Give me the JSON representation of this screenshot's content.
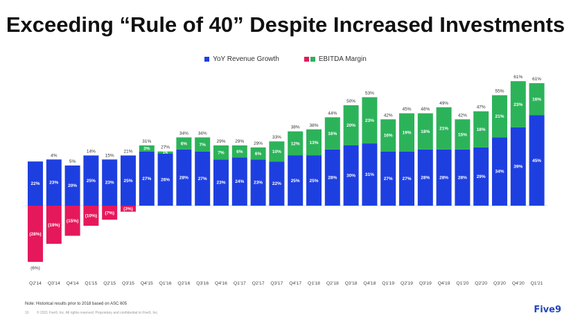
{
  "title": "Exceeding “Rule of 40” Despite Increased Investments",
  "colors": {
    "revenue": "#1e3fe0",
    "ebitda_positive": "#2cb35a",
    "ebitda_negative": "#e5185c"
  },
  "chart_data": {
    "type": "bar",
    "stacked": true,
    "categories": [
      "Q2'14",
      "Q3'14",
      "Q4'14",
      "Q1'15",
      "Q2'15",
      "Q3'15",
      "Q4'15",
      "Q1'16",
      "Q2'16",
      "Q3'16",
      "Q4'16",
      "Q1'17",
      "Q2'17",
      "Q3'17",
      "Q4'17",
      "Q1'18",
      "Q2'18",
      "Q3'18",
      "Q4'18",
      "Q1'19",
      "Q2'19",
      "Q3'19",
      "Q4'19",
      "Q1'20",
      "Q2'20",
      "Q3'20",
      "Q4'20",
      "Q1'21"
    ],
    "series": [
      {
        "name": "YoY Revenue Growth",
        "values": [
          22,
          23,
          20,
          25,
          23,
          25,
          27,
          26,
          28,
          27,
          23,
          24,
          23,
          22,
          25,
          25,
          28,
          30,
          31,
          27,
          27,
          28,
          28,
          28,
          29,
          34,
          39,
          45
        ],
        "labels": [
          "22%",
          "23%",
          "20%",
          "25%",
          "23%",
          "25%",
          "27%",
          "26%",
          "28%",
          "27%",
          "23%",
          "24%",
          "23%",
          "22%",
          "25%",
          "25%",
          "28%",
          "30%",
          "31%",
          "27%",
          "27%",
          "28%",
          "28%",
          "28%",
          "29%",
          "34%",
          "39%",
          "45%"
        ]
      },
      {
        "name": "EBITDA Margin",
        "values": [
          -28,
          -19,
          -15,
          -10,
          -7,
          -3,
          3,
          1,
          6,
          7,
          7,
          6,
          6,
          10,
          12,
          13,
          16,
          20,
          23,
          16,
          19,
          18,
          21,
          15,
          18,
          21,
          23,
          16
        ],
        "labels": [
          "(28%)",
          "(19%)",
          "(15%)",
          "(10%)",
          "(7%)",
          "(3%)",
          "3%",
          "1%",
          "6%",
          "7%",
          "7%",
          "6%",
          "6%",
          "10%",
          "12%",
          "13%",
          "16%",
          "20%",
          "23%",
          "16%",
          "19%",
          "18%",
          "21%",
          "15%",
          "18%",
          "21%",
          "23%",
          "16%"
        ]
      }
    ],
    "totals": [
      "(6%)",
      "4%",
      "5%",
      "14%",
      "15%",
      "21%",
      "31%",
      "27%",
      "34%",
      "34%",
      "29%",
      "29%",
      "29%",
      "33%",
      "38%",
      "38%",
      "44%",
      "50%",
      "53%",
      "42%",
      "45%",
      "46%",
      "49%",
      "42%",
      "47%",
      "55%",
      "61%",
      "61%"
    ],
    "legend_position": "top-center",
    "grid": false
  },
  "footnote": "Note: Historical results prior to 2018 based on ASC 605",
  "footer": {
    "page_number": "10",
    "copyright": "© 2021 Five9, Inc. All rights reserved. Proprietary and confidential to Five9, Inc."
  },
  "logo_text": "Five9"
}
